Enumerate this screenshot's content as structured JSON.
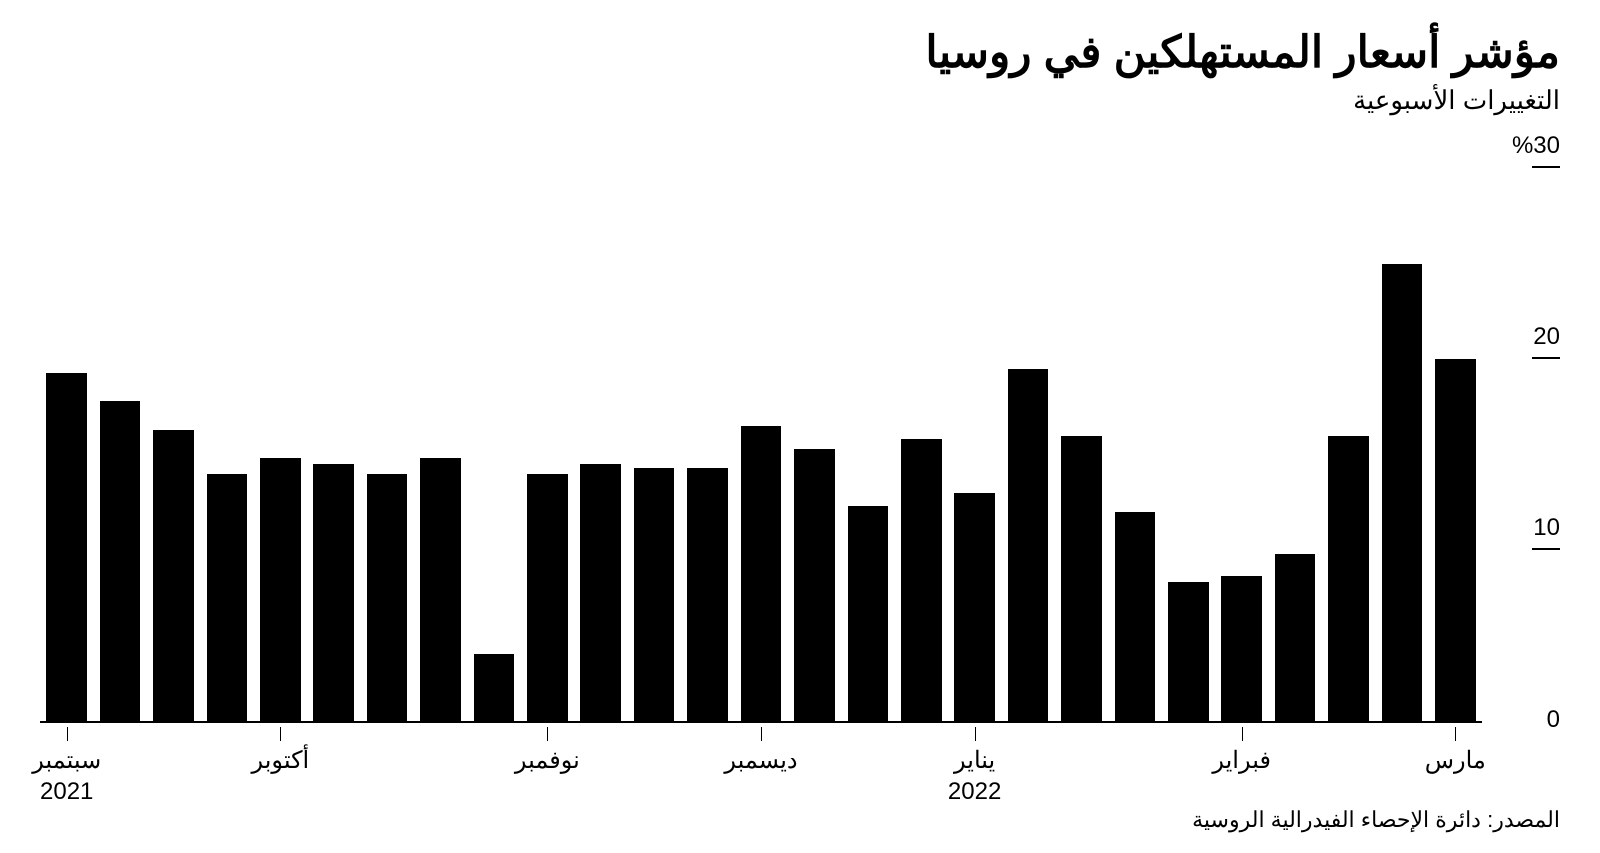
{
  "title": "مؤشر أسعار المستهلكين في روسيا",
  "subtitle": "التغييرات الأسبوعية",
  "source": "المصدر: دائرة الإحصاء الفيدرالية الروسية",
  "chart": {
    "type": "bar",
    "direction": "rtl",
    "background_color": "#ffffff",
    "bar_color": "#000000",
    "axis_color": "#000000",
    "text_color": "#000000",
    "title_fontsize": 44,
    "subtitle_fontsize": 26,
    "label_fontsize": 24,
    "source_fontsize": 22,
    "bar_width_ratio": 0.76,
    "y": {
      "min": 0,
      "max": 30,
      "ticks": [
        {
          "value": 0,
          "label": "0"
        },
        {
          "value": 10,
          "label": "10"
        },
        {
          "value": 20,
          "label": "20"
        },
        {
          "value": 30,
          "label": "%30"
        }
      ]
    },
    "x": {
      "labels": [
        {
          "at_index": 0,
          "text": "سبتمبر",
          "year": "2021"
        },
        {
          "at_index": 4,
          "text": "أكتوبر"
        },
        {
          "at_index": 9,
          "text": "نوفمبر"
        },
        {
          "at_index": 13,
          "text": "ديسمبر"
        },
        {
          "at_index": 17,
          "text": "يناير",
          "year": "2022"
        },
        {
          "at_index": 22,
          "text": "فبراير"
        },
        {
          "at_index": 26,
          "text": "مارس"
        }
      ]
    },
    "values": [
      18.3,
      16.8,
      15.3,
      13.0,
      13.8,
      13.5,
      13.0,
      13.8,
      3.5,
      13.0,
      13.5,
      13.3,
      13.3,
      15.5,
      14.3,
      11.3,
      14.8,
      12.0,
      18.5,
      15.0,
      11.0,
      7.3,
      7.6,
      8.8,
      15.0,
      24.0,
      19.0
    ]
  }
}
